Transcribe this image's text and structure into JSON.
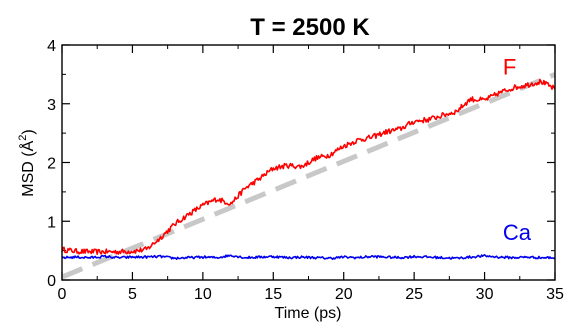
{
  "chart_data": {
    "type": "line",
    "title": "T = 2500 K",
    "xlabel": "Time (ps)",
    "ylabel_main": "MSD (Å",
    "ylabel_sup": "2",
    "ylabel_close": ")",
    "xlim": [
      0,
      35
    ],
    "ylim": [
      0,
      4
    ],
    "xticks": [
      0,
      5,
      10,
      15,
      20,
      25,
      30,
      35
    ],
    "yticks": [
      0,
      1,
      2,
      3,
      4
    ],
    "xtick_labels": [
      "0",
      "5",
      "10",
      "15",
      "20",
      "25",
      "30",
      "35"
    ],
    "ytick_labels": [
      "0",
      "1",
      "2",
      "3",
      "4"
    ],
    "grid": false,
    "series": [
      {
        "name": "F",
        "color": "#ff0000",
        "style": "solid",
        "x": [
          0,
          1,
          2,
          3,
          4,
          5,
          6,
          7,
          8,
          9,
          10,
          11,
          12,
          13,
          14,
          15,
          16,
          17,
          18,
          19,
          20,
          21,
          22,
          23,
          24,
          25,
          26,
          27,
          28,
          29,
          30,
          31,
          32,
          33,
          34,
          35
        ],
        "y": [
          0.52,
          0.49,
          0.48,
          0.48,
          0.48,
          0.49,
          0.52,
          0.72,
          0.95,
          1.12,
          1.27,
          1.38,
          1.3,
          1.56,
          1.72,
          1.9,
          1.95,
          1.93,
          2.07,
          2.13,
          2.28,
          2.38,
          2.43,
          2.52,
          2.57,
          2.7,
          2.73,
          2.8,
          2.87,
          3.08,
          3.06,
          3.18,
          3.27,
          3.32,
          3.38,
          3.25
        ]
      },
      {
        "name": "Ca",
        "color": "#0000ee",
        "style": "solid",
        "x": [
          0,
          1,
          2,
          3,
          4,
          5,
          6,
          7,
          8,
          9,
          10,
          11,
          12,
          13,
          14,
          15,
          16,
          17,
          18,
          19,
          20,
          21,
          22,
          23,
          24,
          25,
          26,
          27,
          28,
          29,
          30,
          31,
          32,
          33,
          34,
          35
        ],
        "y": [
          0.38,
          0.39,
          0.38,
          0.4,
          0.38,
          0.39,
          0.39,
          0.4,
          0.37,
          0.38,
          0.39,
          0.38,
          0.42,
          0.38,
          0.39,
          0.4,
          0.38,
          0.39,
          0.38,
          0.37,
          0.39,
          0.38,
          0.4,
          0.39,
          0.38,
          0.4,
          0.39,
          0.38,
          0.37,
          0.39,
          0.41,
          0.39,
          0.38,
          0.39,
          0.38,
          0.38
        ]
      },
      {
        "name": "",
        "color": "#c8c8c8",
        "style": "dashed",
        "x": [
          0,
          35
        ],
        "y": [
          0.05,
          3.5
        ]
      }
    ],
    "annotations": [
      {
        "text": "F",
        "x": 31.3,
        "y": 3.5,
        "color": "#ff0000"
      },
      {
        "text": "Ca",
        "x": 31.3,
        "y": 0.68,
        "color": "#0000ee"
      }
    ]
  }
}
